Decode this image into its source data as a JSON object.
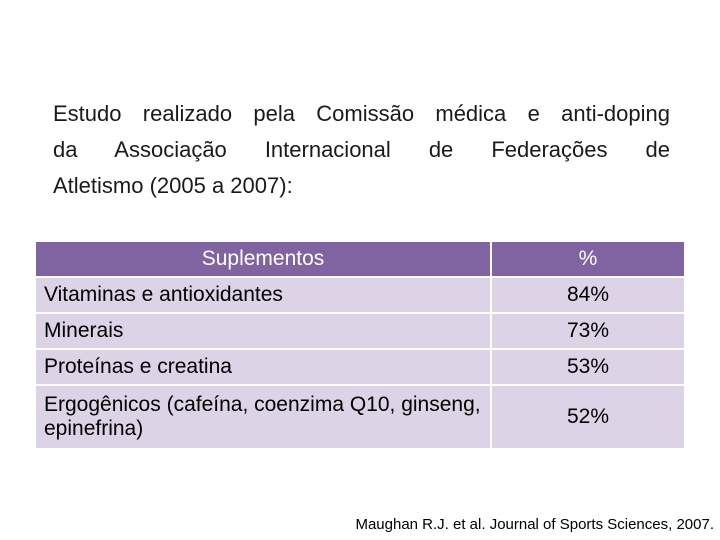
{
  "intro": {
    "line1": "Estudo realizado pela Comissão médica e anti-doping",
    "line2": "da Associação Internacional de Federações de",
    "line3": "Atletismo (2005 a 2007):"
  },
  "table": {
    "headers": [
      "Suplementos",
      "%"
    ],
    "rows": [
      {
        "item": "Vitaminas e antioxidantes",
        "value": "84%"
      },
      {
        "item": "Minerais",
        "value": "73%"
      },
      {
        "item": "Proteínas e creatina",
        "value": "53%"
      },
      {
        "item": "Ergogênicos (cafeína, coenzima Q10, ginseng, epinefrina)",
        "value": "52%"
      }
    ]
  },
  "source": "Maughan R.J. et al. Journal of Sports Sciences, 2007.",
  "colors": {
    "header_bg": "#8064a2",
    "row_bg": "#dcd4e6"
  }
}
